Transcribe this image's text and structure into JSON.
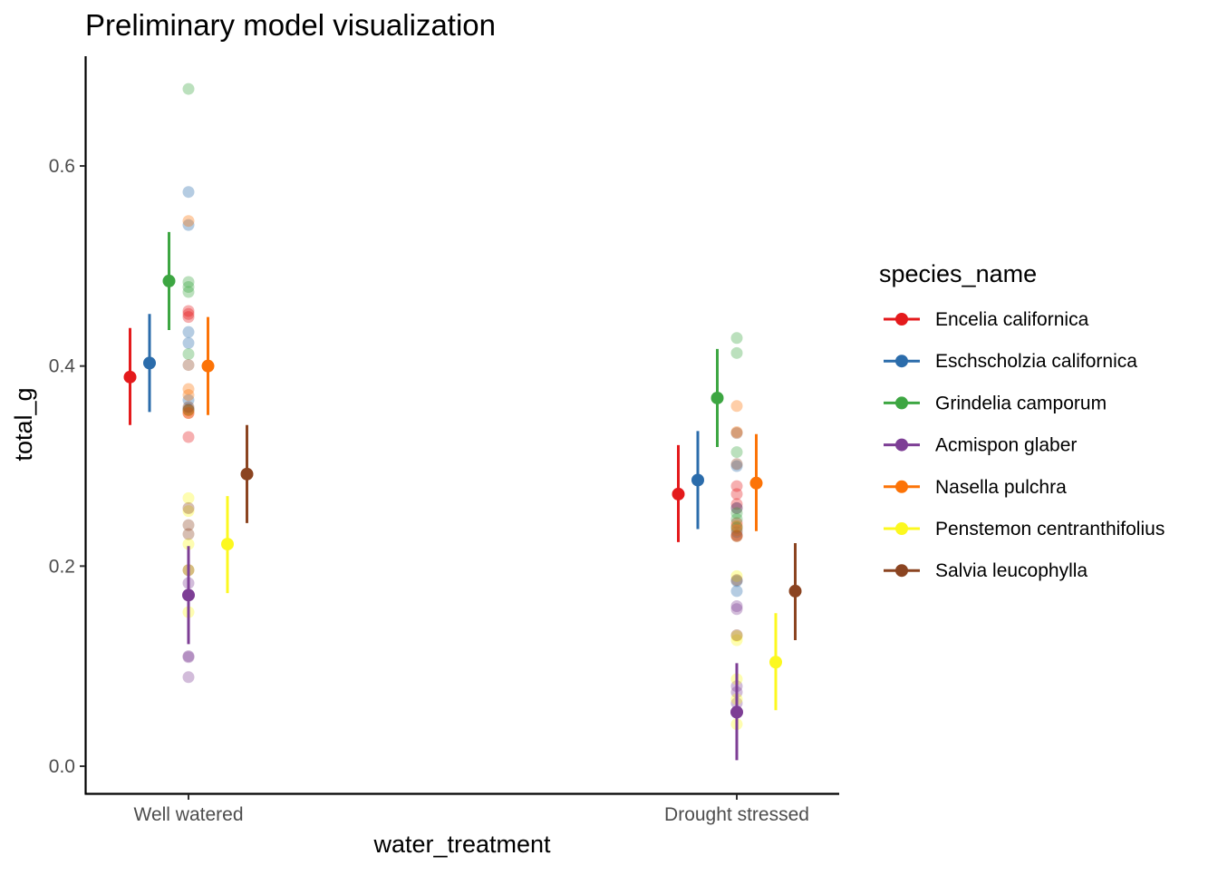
{
  "chart_data": {
    "type": "scatter",
    "title": "Preliminary model visualization",
    "xlabel": "water_treatment",
    "ylabel": "total_g",
    "categories": [
      "Well watered",
      "Drought stressed"
    ],
    "ylim": [
      -0.03,
      0.705
    ],
    "yticks": [
      0.0,
      0.2,
      0.4,
      0.6
    ],
    "ytick_labels": [
      "0.0",
      "0.2",
      "0.4",
      "0.6"
    ],
    "grid": false,
    "legend": {
      "title": "species_name",
      "position": "right"
    },
    "series": [
      {
        "name": "Encelia californica",
        "color": "#e41a1c",
        "estimates": [
          {
            "category": "Well watered",
            "y": 0.389,
            "lower": 0.341,
            "upper": 0.438
          },
          {
            "category": "Drought stressed",
            "y": 0.272,
            "lower": 0.224,
            "upper": 0.321
          }
        ],
        "observations": {
          "Well watered": [
            0.455,
            0.452,
            0.449,
            0.356,
            0.353,
            0.329
          ],
          "Drought stressed": [
            0.28,
            0.272,
            0.262,
            0.258,
            0.243,
            0.231
          ]
        }
      },
      {
        "name": "Eschscholzia californica",
        "color": "#2b6cab",
        "estimates": [
          {
            "category": "Well watered",
            "y": 0.403,
            "lower": 0.354,
            "upper": 0.452
          },
          {
            "category": "Drought stressed",
            "y": 0.286,
            "lower": 0.237,
            "upper": 0.335
          }
        ],
        "observations": {
          "Well watered": [
            0.574,
            0.541,
            0.434,
            0.423,
            0.366,
            0.357
          ],
          "Drought stressed": [
            0.3,
            0.258,
            0.238,
            0.234,
            0.185,
            0.175
          ]
        }
      },
      {
        "name": "Grindelia camporum",
        "color": "#3da642",
        "estimates": [
          {
            "category": "Well watered",
            "y": 0.485,
            "lower": 0.436,
            "upper": 0.534
          },
          {
            "category": "Drought stressed",
            "y": 0.368,
            "lower": 0.319,
            "upper": 0.417
          }
        ],
        "observations": {
          "Well watered": [
            0.677,
            0.484,
            0.479,
            0.474,
            0.412,
            0.356
          ],
          "Drought stressed": [
            0.428,
            0.413,
            0.314,
            0.253,
            0.247,
            0.239
          ]
        }
      },
      {
        "name": "Acmispon glaber",
        "color": "#7d3e95",
        "estimates": [
          {
            "category": "Well watered",
            "y": 0.171,
            "lower": 0.122,
            "upper": 0.22
          },
          {
            "category": "Drought stressed",
            "y": 0.054,
            "lower": 0.006,
            "upper": 0.103
          }
        ],
        "observations": {
          "Well watered": [
            0.183,
            0.171,
            0.11,
            0.109,
            0.089
          ],
          "Drought stressed": [
            0.16,
            0.157,
            0.08,
            0.074,
            0.063,
            0.054
          ]
        }
      },
      {
        "name": "Nasella pulchra",
        "color": "#fc7307",
        "estimates": [
          {
            "category": "Well watered",
            "y": 0.4,
            "lower": 0.351,
            "upper": 0.449
          },
          {
            "category": "Drought stressed",
            "y": 0.283,
            "lower": 0.235,
            "upper": 0.332
          }
        ],
        "observations": {
          "Well watered": [
            0.545,
            0.377,
            0.371,
            0.356,
            0.353
          ],
          "Drought stressed": [
            0.36,
            0.334,
            0.24,
            0.236,
            0.23
          ]
        }
      },
      {
        "name": "Penstemon centranthifolius",
        "color": "#fcf81f",
        "estimates": [
          {
            "category": "Well watered",
            "y": 0.222,
            "lower": 0.173,
            "upper": 0.27
          },
          {
            "category": "Drought stressed",
            "y": 0.104,
            "lower": 0.056,
            "upper": 0.153
          }
        ],
        "observations": {
          "Well watered": [
            0.268,
            0.255,
            0.222,
            0.196,
            0.154
          ],
          "Drought stressed": [
            0.19,
            0.13,
            0.126,
            0.087,
            0.067,
            0.042
          ]
        }
      },
      {
        "name": "Salvia leucophylla",
        "color": "#8b4421",
        "estimates": [
          {
            "category": "Well watered",
            "y": 0.292,
            "lower": 0.243,
            "upper": 0.341
          },
          {
            "category": "Drought stressed",
            "y": 0.175,
            "lower": 0.126,
            "upper": 0.223
          }
        ],
        "observations": {
          "Well watered": [
            0.401,
            0.359,
            0.258,
            0.241,
            0.232,
            0.196
          ],
          "Drought stressed": [
            0.333,
            0.302,
            0.23,
            0.186,
            0.131
          ]
        }
      }
    ]
  }
}
